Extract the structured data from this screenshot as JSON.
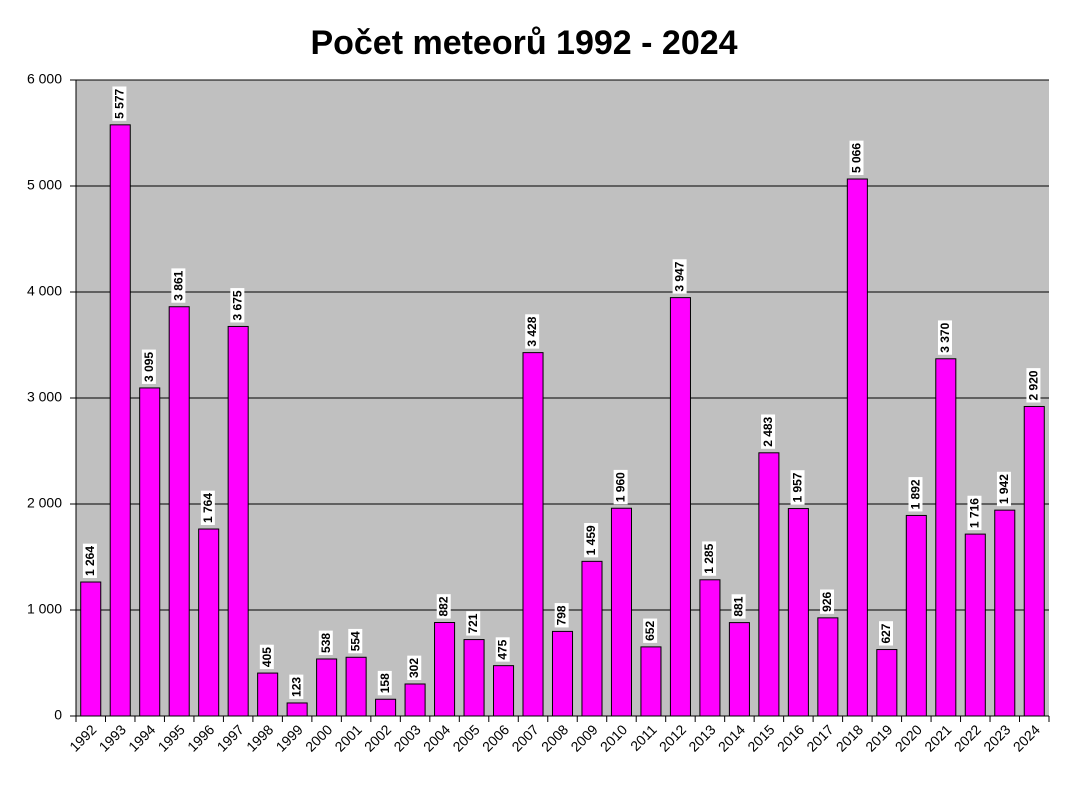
{
  "chart_data": {
    "type": "bar",
    "title": "Počet meteorů 1992 - 2024",
    "categories": [
      "1992",
      "1993",
      "1994",
      "1995",
      "1996",
      "1997",
      "1998",
      "1999",
      "2000",
      "2001",
      "2002",
      "2003",
      "2004",
      "2005",
      "2006",
      "2007",
      "2008",
      "2009",
      "2010",
      "2011",
      "2012",
      "2013",
      "2014",
      "2015",
      "2016",
      "2017",
      "2018",
      "2019",
      "2020",
      "2021",
      "2022",
      "2023",
      "2024"
    ],
    "values": [
      1264,
      5577,
      3095,
      3861,
      1764,
      3675,
      405,
      123,
      538,
      554,
      158,
      302,
      882,
      721,
      475,
      3428,
      798,
      1459,
      1960,
      652,
      3947,
      1285,
      881,
      2483,
      1957,
      926,
      5066,
      627,
      1892,
      3370,
      1716,
      1942,
      2920
    ],
    "value_labels": [
      "1 264",
      "5 577",
      "3 095",
      "3 861",
      "1 764",
      "3 675",
      "405",
      "123",
      "538",
      "554",
      "158",
      "302",
      "882",
      "721",
      "475",
      "3 428",
      "798",
      "1 459",
      "1 960",
      "652",
      "3 947",
      "1 285",
      "881",
      "2 483",
      "1 957",
      "926",
      "5 066",
      "627",
      "1 892",
      "3 370",
      "1 716",
      "1 942",
      "2 920"
    ],
    "color": "#ff00ff",
    "ylim": [
      0,
      6000
    ],
    "yticks": [
      0,
      {
        "value": 1000,
        "label": "1 000"
      },
      {
        "value": 2000,
        "label": "2 000"
      },
      {
        "value": 3000,
        "label": "3 000"
      },
      {
        "value": 4000,
        "label": "4 000"
      },
      {
        "value": 5000,
        "label": "5 000"
      },
      {
        "value": 6000,
        "label": "6 000"
      }
    ],
    "grid": true
  }
}
